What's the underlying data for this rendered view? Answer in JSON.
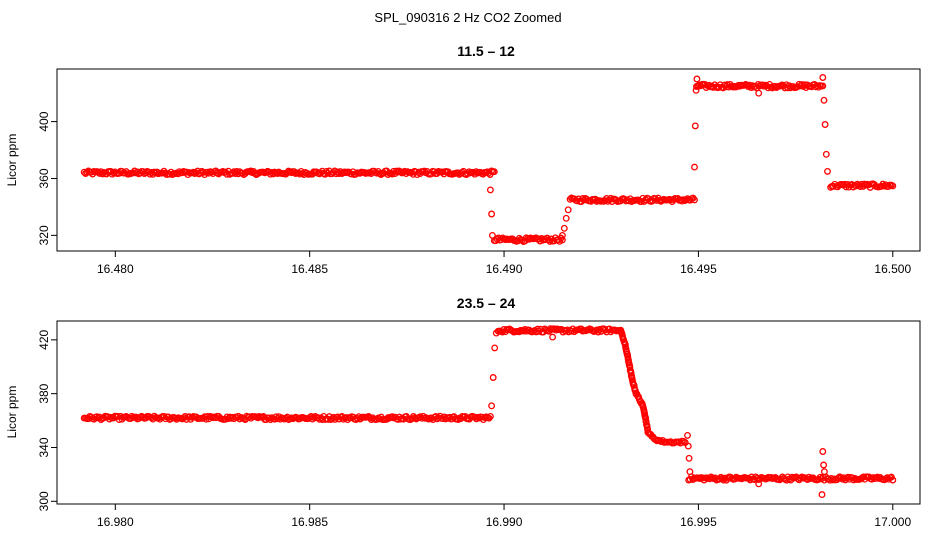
{
  "figure": {
    "title": "SPL_090316  2 Hz CO2 Zoomed"
  },
  "chart_data": [
    {
      "type": "scatter",
      "title": "11.5 – 12",
      "xlabel": "",
      "ylabel": "Licor ppm",
      "xlim": [
        16.4785,
        16.5007
      ],
      "ylim": [
        309,
        437
      ],
      "xticks": [
        16.48,
        16.485,
        16.49,
        16.495,
        16.5
      ],
      "xtick_labels": [
        "16.480",
        "16.485",
        "16.490",
        "16.495",
        "16.500"
      ],
      "yticks": [
        320,
        360,
        400
      ],
      "ytick_labels": [
        "320",
        "360",
        "400"
      ],
      "marker": "open-circle",
      "color": "#ff0000",
      "grid": false,
      "segments": [
        {
          "x_start": 16.4792,
          "x_end": 16.48975,
          "y": 364
        },
        {
          "x_start": 16.48975,
          "x_end": 16.4915,
          "y": 317
        },
        {
          "x_start": 16.4917,
          "x_end": 16.4949,
          "y": 345
        },
        {
          "x_start": 16.49495,
          "x_end": 16.4982,
          "y": 425
        },
        {
          "x_start": 16.4984,
          "x_end": 16.5,
          "y": 355
        }
      ],
      "transition_points": [
        {
          "x": 16.48965,
          "y": 352
        },
        {
          "x": 16.48968,
          "y": 335
        },
        {
          "x": 16.4897,
          "y": 320
        },
        {
          "x": 16.4915,
          "y": 320
        },
        {
          "x": 16.49155,
          "y": 325
        },
        {
          "x": 16.4916,
          "y": 332
        },
        {
          "x": 16.49165,
          "y": 338
        },
        {
          "x": 16.4949,
          "y": 368
        },
        {
          "x": 16.49492,
          "y": 397
        },
        {
          "x": 16.49494,
          "y": 422
        },
        {
          "x": 16.49496,
          "y": 430
        },
        {
          "x": 16.49655,
          "y": 420
        },
        {
          "x": 16.4982,
          "y": 431
        },
        {
          "x": 16.49823,
          "y": 415
        },
        {
          "x": 16.49826,
          "y": 398
        },
        {
          "x": 16.49829,
          "y": 377
        },
        {
          "x": 16.49832,
          "y": 365
        }
      ]
    },
    {
      "type": "scatter",
      "title": "23.5 – 24",
      "xlabel": "",
      "ylabel": "Licor ppm",
      "xlim": [
        16.9785,
        17.0007
      ],
      "ylim": [
        298,
        434
      ],
      "xticks": [
        16.98,
        16.985,
        16.99,
        16.995,
        17.0
      ],
      "xtick_labels": [
        "16.980",
        "16.985",
        "16.990",
        "16.995",
        "17.000"
      ],
      "yticks": [
        300,
        340,
        380,
        420
      ],
      "ytick_labels": [
        "300",
        "340",
        "380",
        "420"
      ],
      "marker": "open-circle",
      "color": "#ff0000",
      "grid": false,
      "segments": [
        {
          "x_start": 16.9792,
          "x_end": 16.98965,
          "y": 362
        },
        {
          "x_start": 16.98985,
          "x_end": 16.993,
          "y": 427
        },
        {
          "x_start": 16.99475,
          "x_end": 17.0,
          "y": 317
        }
      ],
      "curve": {
        "x": [
          16.993,
          16.9931,
          16.9932,
          16.9933,
          16.9934,
          16.9935,
          16.99355,
          16.9936,
          16.99365,
          16.9937,
          16.9938,
          16.9939,
          16.994,
          16.9942,
          16.9945,
          16.9947
        ],
        "y": [
          427,
          418,
          405,
          390,
          380,
          375,
          372,
          368,
          360,
          352,
          348,
          346,
          345,
          344,
          344,
          344
        ]
      },
      "transition_points": [
        {
          "x": 16.98968,
          "y": 371
        },
        {
          "x": 16.98972,
          "y": 392
        },
        {
          "x": 16.98976,
          "y": 414
        },
        {
          "x": 16.9898,
          "y": 425
        },
        {
          "x": 16.99125,
          "y": 422
        },
        {
          "x": 16.99472,
          "y": 349
        },
        {
          "x": 16.99474,
          "y": 341
        },
        {
          "x": 16.99476,
          "y": 332
        },
        {
          "x": 16.99478,
          "y": 322
        },
        {
          "x": 16.99655,
          "y": 313
        },
        {
          "x": 16.9982,
          "y": 337
        },
        {
          "x": 16.99822,
          "y": 327
        },
        {
          "x": 16.99824,
          "y": 322
        },
        {
          "x": 16.99818,
          "y": 305
        }
      ]
    }
  ]
}
